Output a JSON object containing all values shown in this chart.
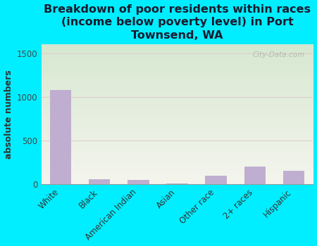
{
  "categories": [
    "White",
    "Black",
    "American Indian",
    "Asian",
    "Other race",
    "2+ races",
    "Hispanic"
  ],
  "values": [
    1080,
    55,
    50,
    10,
    100,
    200,
    150
  ],
  "bar_color": "#c0aed0",
  "title": "Breakdown of poor residents within races\n(income below poverty level) in Port\nTownsend, WA",
  "ylabel": "absolute numbers",
  "ylim": [
    0,
    1600
  ],
  "yticks": [
    0,
    500,
    1000,
    1500
  ],
  "bg_outer": "#00eeff",
  "bg_plot_topleft": "#d6e8d0",
  "bg_plot_topright": "#e8f0e0",
  "bg_plot_bottom": "#f0f0e8",
  "grid_color": "#ddcccc",
  "watermark": "City-Data.com",
  "title_fontsize": 11.5,
  "ylabel_fontsize": 9,
  "tick_fontsize": 8.5,
  "title_color": "#1a1a2e"
}
